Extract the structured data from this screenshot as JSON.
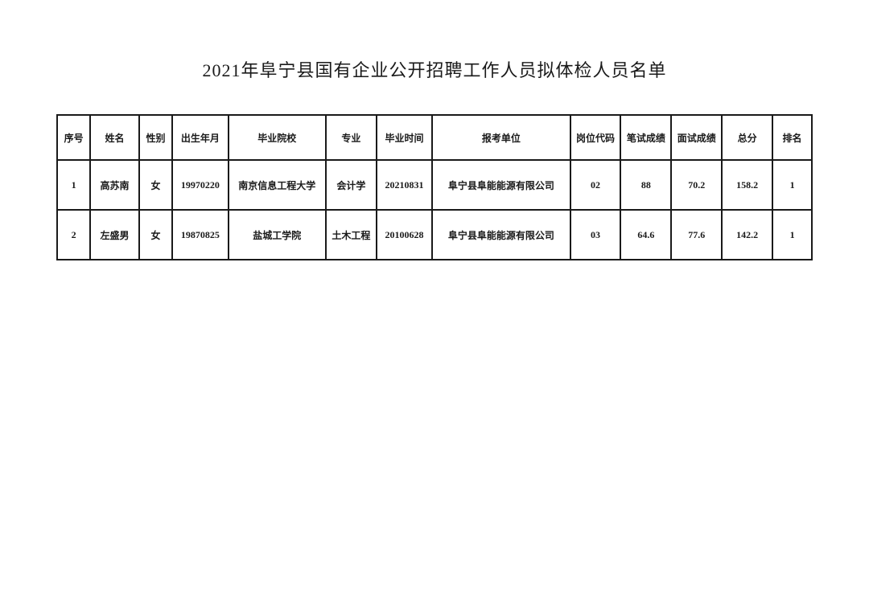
{
  "title": "2021年阜宁县国有企业公开招聘工作人员拟体检人员名单",
  "table": {
    "columns": [
      "序号",
      "姓名",
      "性别",
      "出生年月",
      "毕业院校",
      "专业",
      "毕业时间",
      "报考单位",
      "岗位代码",
      "笔试成绩",
      "面试成绩",
      "总分",
      "排名"
    ],
    "rows": [
      {
        "seq": "1",
        "name": "高苏南",
        "gender": "女",
        "birth": "19970220",
        "school": "南京信息工程大学",
        "major": "会计学",
        "gradtime": "20210831",
        "unit": "阜宁县阜能能源有限公司",
        "position": "02",
        "written": "88",
        "interview": "70.2",
        "total": "158.2",
        "rank": "1"
      },
      {
        "seq": "2",
        "name": "左盛男",
        "gender": "女",
        "birth": "19870825",
        "school": "盐城工学院",
        "major": "土木工程",
        "gradtime": "20100628",
        "unit": "阜宁县阜能能源有限公司",
        "position": "03",
        "written": "64.6",
        "interview": "77.6",
        "total": "142.2",
        "rank": "1"
      }
    ]
  }
}
